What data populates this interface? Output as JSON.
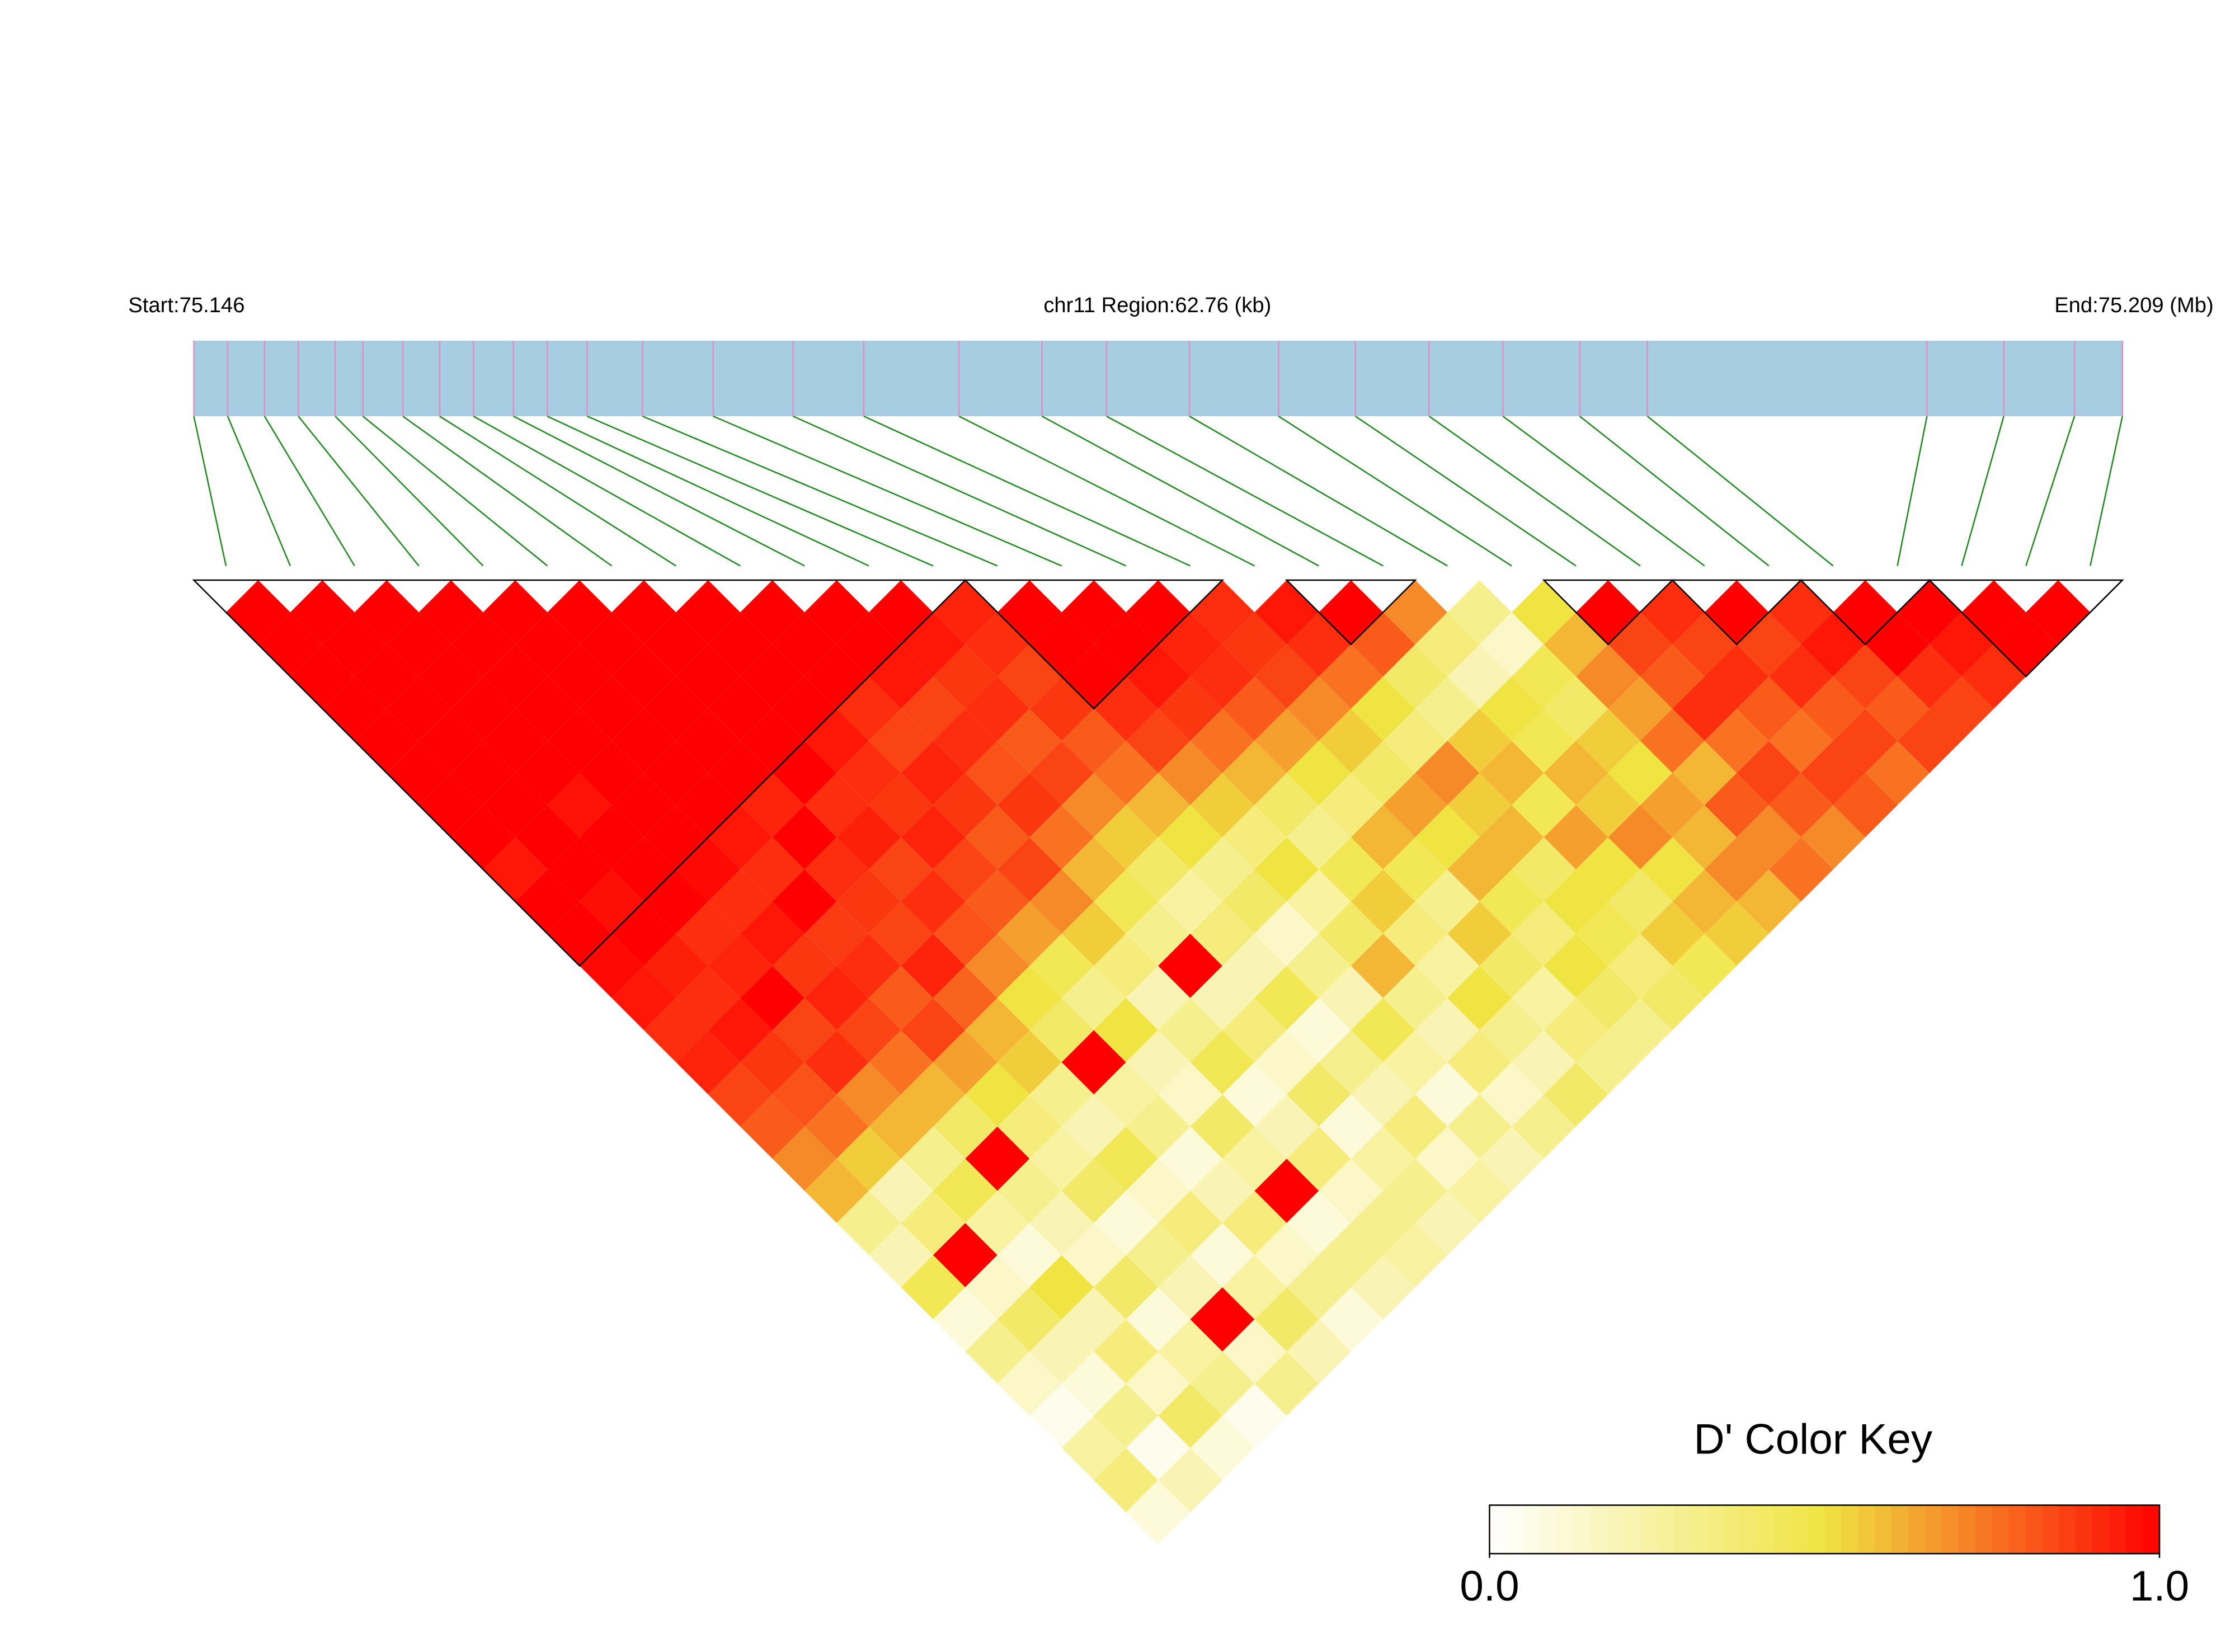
{
  "chart_data": {
    "type": "ld-heatmap",
    "start_label": "Start:75.146",
    "region_label": "chr11 Region:62.76 (kb)",
    "end_label": "End:75.209 (Mb)",
    "key_title": "D' Color Key",
    "key_lim": [
      0,
      1
    ],
    "key_ticks": [
      {
        "value": 0,
        "label": "0.0"
      },
      {
        "value": 1,
        "label": "1.0"
      }
    ],
    "color_stops": [
      "#ffffff",
      "#f0e442",
      "#ff0000"
    ],
    "region_lim": [
      0,
      62.76
    ],
    "bar_color": "#a6cde1",
    "marker_color": "#e08ec8",
    "connector_color": "#228b22",
    "snp_positions": [
      0,
      1.1,
      2.3,
      3.4,
      4.6,
      5.5,
      6.8,
      8.0,
      9.1,
      10.4,
      11.5,
      12.8,
      14.6,
      16.9,
      19.5,
      21.8,
      24.9,
      27.6,
      29.7,
      32.4,
      35.3,
      37.8,
      40.2,
      42.6,
      45.1,
      47.3,
      56.4,
      58.9,
      61.2,
      62.76
    ],
    "blocks": [
      [
        0,
        11
      ],
      [
        12,
        15
      ],
      [
        17,
        18
      ],
      [
        21,
        22
      ],
      [
        23,
        24
      ],
      [
        25,
        26
      ],
      [
        27,
        29
      ]
    ],
    "dprime": [
      [
        1,
        1,
        1,
        1,
        1,
        1,
        1,
        1,
        0.95,
        1,
        1,
        0.98,
        0.95,
        0.9,
        0.92,
        0.85,
        0.8,
        0.7,
        0.6,
        0.3,
        0.2,
        0.45,
        0.1,
        0.3,
        0.15,
        0.05,
        0.25,
        0.35,
        0.1
      ],
      [
        1,
        1,
        1,
        1,
        1,
        1,
        1,
        1,
        1,
        0.97,
        1,
        0.93,
        0.9,
        0.95,
        0.88,
        0.82,
        0.75,
        0.55,
        0.2,
        0.35,
        1,
        0.15,
        0.4,
        0.2,
        0.1,
        0.3,
        0.05,
        0.2
      ],
      [
        1,
        1,
        1,
        1,
        1,
        1,
        0.96,
        1,
        1,
        1,
        0.9,
        0.92,
        1,
        0.85,
        0.9,
        0.7,
        0.6,
        0.3,
        0.45,
        0.25,
        0.1,
        0.5,
        0.2,
        0.35,
        0.15,
        0.4,
        0.1
      ],
      [
        1,
        1,
        1,
        1,
        1,
        1,
        1,
        1,
        0.98,
        0.9,
        0.95,
        0.88,
        0.92,
        0.85,
        0.75,
        0.6,
        0.4,
        1,
        0.3,
        0.2,
        0.15,
        0.4,
        0.1,
        0.25,
        0.3,
        0.05
      ],
      [
        1,
        1,
        1,
        1,
        1,
        1,
        1,
        0.95,
        0.9,
        1,
        0.87,
        0.9,
        0.8,
        0.85,
        0.65,
        0.5,
        0.35,
        0.25,
        0.4,
        0.1,
        0.3,
        0.2,
        1,
        0.15,
        0.3
      ],
      [
        1,
        1,
        1,
        1,
        1,
        1,
        0.92,
        1,
        0.9,
        0.88,
        0.85,
        0.92,
        0.78,
        0.6,
        0.55,
        0.3,
        0.2,
        0.45,
        0.15,
        0.35,
        0.1,
        0.25,
        0.4,
        0.2
      ],
      [
        1,
        1,
        1,
        1,
        1,
        1,
        0.9,
        0.93,
        0.85,
        0.9,
        0.82,
        0.7,
        0.5,
        0.4,
        1,
        0.25,
        0.3,
        0.1,
        0.2,
        0.35,
        0.15,
        0.3,
        0.1
      ],
      [
        1,
        1,
        1,
        1,
        0.95,
        0.9,
        0.88,
        0.92,
        0.85,
        0.8,
        0.65,
        0.45,
        0.3,
        0.5,
        0.2,
        0.15,
        0.4,
        0.25,
        1,
        0.1,
        0.3,
        0.2
      ],
      [
        1,
        1,
        1,
        0.9,
        0.85,
        0.92,
        0.88,
        0.8,
        0.85,
        0.7,
        0.55,
        0.35,
        0.2,
        0.3,
        0.45,
        0.1,
        0.2,
        0.35,
        0.15,
        0.3,
        0.25
      ],
      [
        1,
        1,
        0.95,
        0.85,
        0.9,
        0.82,
        0.88,
        0.75,
        0.6,
        0.45,
        0.3,
        1,
        0.2,
        0.35,
        0.15,
        0.4,
        0.1,
        0.25,
        0.3,
        0.2
      ],
      [
        1,
        0.95,
        0.88,
        0.9,
        0.8,
        0.85,
        0.7,
        0.55,
        0.4,
        0.25,
        0.35,
        0.2,
        0.45,
        0.1,
        0.3,
        0.2,
        0.35,
        0.15,
        0.25
      ],
      [
        0.92,
        0.9,
        0.85,
        0.88,
        0.8,
        0.75,
        0.6,
        0.5,
        0.3,
        0.4,
        0.15,
        0.3,
        0.2,
        0.45,
        0.25,
        0.1,
        0.3,
        0.2
      ],
      [
        1,
        1,
        1,
        0.9,
        0.85,
        0.7,
        0.55,
        0.35,
        0.5,
        0.25,
        0.4,
        0.6,
        0.3,
        0.2,
        0.35,
        0.15,
        0.3
      ],
      [
        1,
        1,
        0.95,
        0.88,
        0.75,
        0.6,
        0.4,
        0.3,
        0.45,
        0.55,
        0.35,
        0.25,
        0.5,
        0.3,
        0.2,
        0.4
      ],
      [
        1,
        0.92,
        0.9,
        0.8,
        0.65,
        0.5,
        0.35,
        0.6,
        0.45,
        0.3,
        0.55,
        0.4,
        0.25,
        0.35,
        0.3
      ],
      [
        0.9,
        0.88,
        0.85,
        0.7,
        0.55,
        0.4,
        0.65,
        0.5,
        0.6,
        0.45,
        0.35,
        0.5,
        0.4,
        0.3
      ],
      [
        0.95,
        0.9,
        0.75,
        0.5,
        0.35,
        0.7,
        0.55,
        0.6,
        0.4,
        0.5,
        0.45,
        0.35,
        0.4
      ],
      [
        1,
        0.8,
        0.4,
        0.3,
        0.55,
        0.6,
        0.45,
        0.65,
        0.5,
        0.4,
        0.55,
        0.45
      ],
      [
        0.7,
        0.35,
        0.2,
        0.5,
        0.45,
        0.6,
        0.55,
        0.7,
        0.5,
        0.6,
        0.55
      ],
      [
        0.3,
        0.15,
        0.45,
        0.4,
        0.55,
        0.5,
        0.65,
        0.6,
        0.7,
        0.6
      ],
      [
        0.5,
        0.6,
        0.7,
        0.65,
        0.75,
        0.6,
        0.8,
        0.7,
        0.75
      ],
      [
        1,
        0.85,
        0.8,
        0.9,
        0.75,
        0.85,
        0.8,
        0.7
      ],
      [
        0.9,
        0.85,
        0.9,
        0.8,
        0.75,
        0.85,
        0.8
      ],
      [
        1,
        0.85,
        0.9,
        0.8,
        0.85,
        0.75
      ],
      [
        0.9,
        0.95,
        0.85,
        0.8,
        0.85
      ],
      [
        1,
        1,
        0.9,
        0.85
      ],
      [
        1,
        0.95,
        0.9
      ],
      [
        1,
        1
      ],
      [
        1
      ]
    ]
  }
}
